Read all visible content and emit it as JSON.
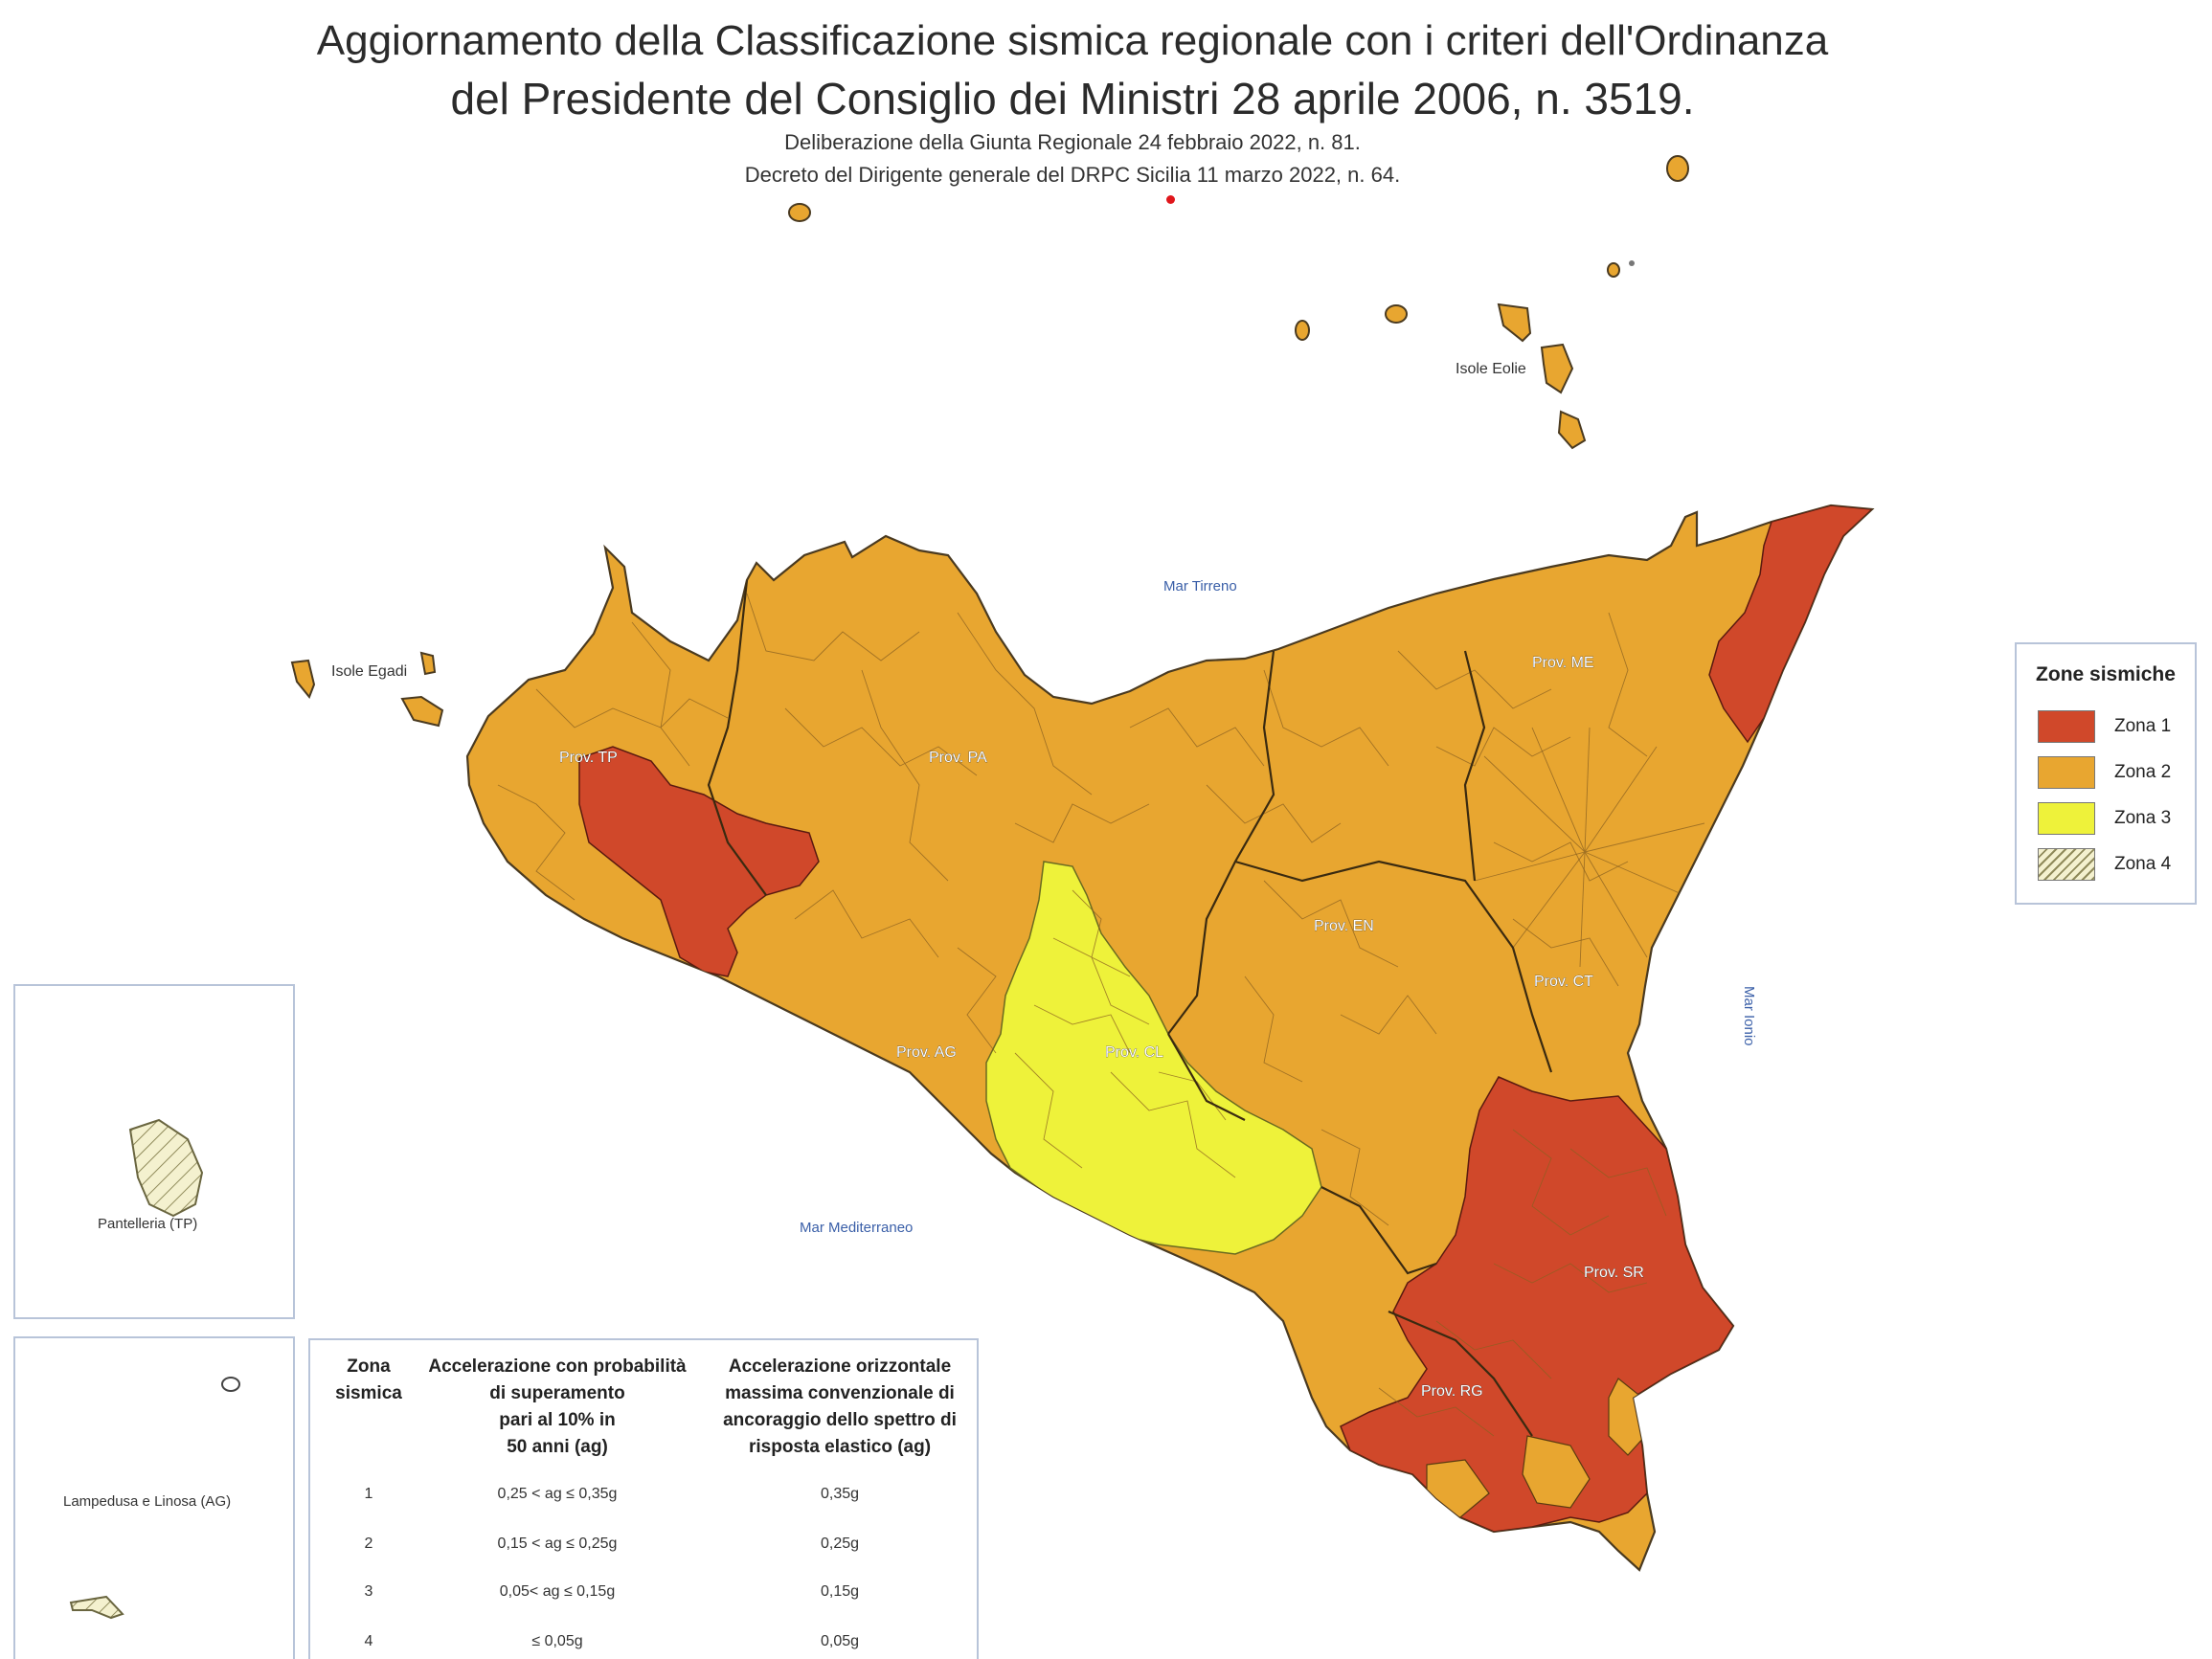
{
  "header": {
    "title_line1": "Aggiornamento della Classificazione sismica regionale con i criteri dell'Ordinanza",
    "title_line2": "del Presidente del Consiglio dei Ministri 28 aprile 2006, n. 3519.",
    "subtitle_line1": "Deliberazione della Giunta Regionale 24 febbraio 2022, n. 81.",
    "subtitle_line2": "Decreto del Dirigente generale del DRPC Sicilia 11 marzo 2022, n. 64."
  },
  "map_labels": {
    "eolie": "Isole Eolie",
    "egadi": "Isole Egadi",
    "tirreno": "Mar Tirreno",
    "mediterraneo": "Mar Mediterraneo",
    "ionio": "Mar Ionio"
  },
  "provinces": {
    "tp": "Prov. TP",
    "pa": "Prov. PA",
    "me": "Prov. ME",
    "en": "Prov. EN",
    "ct": "Prov. CT",
    "ag": "Prov. AG",
    "cl": "Prov. CL",
    "sr": "Prov. SR",
    "rg": "Prov. RG"
  },
  "legend": {
    "title": "Zone sismiche",
    "items": [
      {
        "label": "Zona 1",
        "color": "#d0482a"
      },
      {
        "label": "Zona 2",
        "color": "#e8a630"
      },
      {
        "label": "Zona 3",
        "color": "#eef23a"
      },
      {
        "label": "Zona 4",
        "color": "#f2efc8"
      }
    ]
  },
  "insets": {
    "pantelleria": "Pantelleria (TP)",
    "lampedusa": "Lampedusa e Linosa (AG)"
  },
  "table": {
    "headers": {
      "zona_line1": "Zona",
      "zona_line2": "sismica",
      "acc_prob_line1": "Accelerazione con probabilità",
      "acc_prob_line2": "di superamento",
      "acc_prob_line3": "pari al 10% in",
      "acc_prob_line4": "50 anni (ag)",
      "acc_max_line1": "Accelerazione orizzontale",
      "acc_max_line2": "massima convenzionale di",
      "acc_max_line3": "ancoraggio dello spettro di",
      "acc_max_line4": "risposta elastico (ag)"
    },
    "rows": [
      {
        "zona": "1",
        "prob": "0,25 < ag ≤ 0,35g",
        "max": "0,35g"
      },
      {
        "zona": "2",
        "prob": "0,15 < ag ≤ 0,25g",
        "max": "0,25g"
      },
      {
        "zona": "3",
        "prob": "0,05< ag ≤ 0,15g",
        "max": "0,15g"
      },
      {
        "zona": "4",
        "prob": "≤ 0,05g",
        "max": "0,05g"
      }
    ]
  }
}
